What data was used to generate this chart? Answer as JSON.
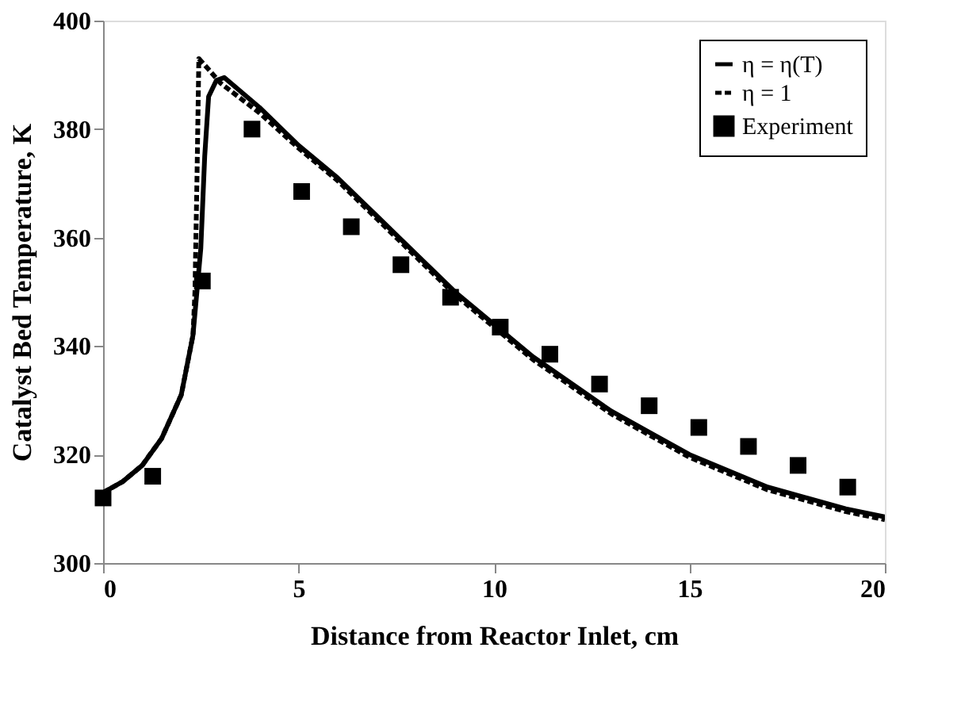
{
  "chart_data": {
    "type": "line",
    "xlabel": "Distance from Reactor Inlet, cm",
    "ylabel": "Catalyst Bed Temperature, K",
    "xlim": [
      0,
      20
    ],
    "ylim": [
      300,
      400
    ],
    "xticks": [
      0,
      5,
      10,
      15,
      20
    ],
    "yticks": [
      300,
      320,
      340,
      360,
      380,
      400
    ],
    "grid": false,
    "legend": "top right",
    "series": [
      {
        "name": "η = η(T)",
        "color": "#000000",
        "line_style": "solid",
        "marker": "none",
        "x": [
          0,
          0.5,
          1,
          1.5,
          2,
          2.3,
          2.5,
          2.6,
          2.7,
          2.9,
          3.1,
          4,
          5,
          6,
          7,
          8,
          9,
          10,
          11,
          12,
          13,
          14,
          15,
          16,
          17,
          18,
          19,
          20
        ],
        "values": [
          313,
          315,
          318,
          323,
          331,
          342,
          358,
          375,
          386,
          389,
          389.5,
          384,
          377,
          371,
          364,
          357,
          350,
          344,
          338,
          333,
          328,
          324,
          320,
          317,
          314,
          312,
          310,
          308.5
        ]
      },
      {
        "name": "η = 1",
        "color": "#000000",
        "line_style": "dashed",
        "marker": "none",
        "x": [
          0,
          0.5,
          1,
          1.5,
          2,
          2.3,
          2.35,
          2.4,
          2.45,
          2.7,
          3,
          4,
          5,
          6,
          7,
          8,
          9,
          10,
          11,
          12,
          13,
          14,
          15,
          16,
          17,
          18,
          19,
          20
        ],
        "values": [
          313,
          315,
          318,
          323,
          331,
          342,
          350,
          370,
          393,
          391,
          388.5,
          383,
          376.5,
          370.5,
          363.5,
          356.5,
          349.5,
          343.5,
          337.5,
          332.5,
          327.5,
          323.5,
          319.5,
          316.5,
          313.5,
          311.5,
          309.5,
          308
        ]
      },
      {
        "name": "Experiment",
        "type": "scatter",
        "color": "#000000",
        "marker": "square",
        "x": [
          0,
          1.27,
          2.54,
          3.81,
          5.08,
          6.35,
          7.62,
          8.89,
          10.16,
          11.43,
          12.7,
          13.97,
          15.24,
          16.51,
          17.78,
          19.05
        ],
        "values": [
          312,
          316,
          352,
          380,
          368.5,
          362,
          355,
          349,
          343.5,
          338.5,
          333,
          329,
          325,
          321.5,
          318,
          314
        ]
      }
    ]
  }
}
